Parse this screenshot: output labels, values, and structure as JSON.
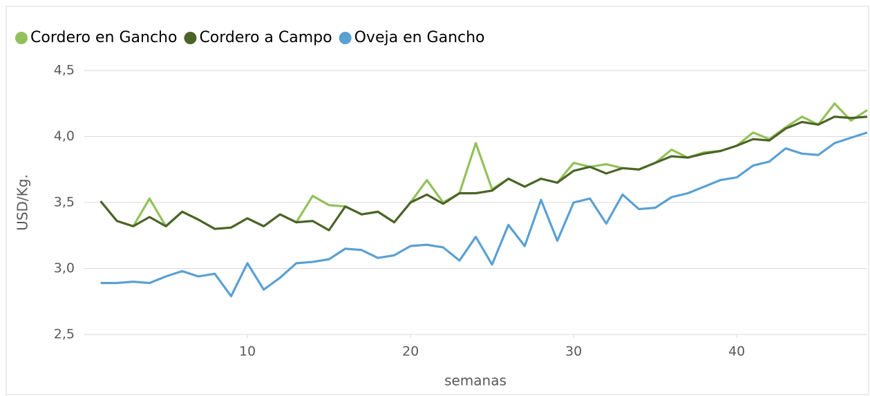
{
  "chart_data": {
    "type": "line",
    "legend": "top-left",
    "grid": true,
    "x_label": "semanas",
    "y_label": "USD/Kg.",
    "x": [
      1,
      2,
      3,
      4,
      5,
      6,
      7,
      8,
      9,
      10,
      11,
      12,
      13,
      14,
      15,
      16,
      17,
      18,
      19,
      20,
      21,
      22,
      23,
      24,
      25,
      26,
      27,
      28,
      29,
      30,
      31,
      32,
      33,
      34,
      35,
      36,
      37,
      38,
      39,
      40,
      41,
      42,
      43,
      44,
      45,
      46,
      47,
      48
    ],
    "xlim": [
      0,
      48
    ],
    "xticks": [
      10,
      20,
      30,
      40
    ],
    "ylim": [
      2.5,
      4.5
    ],
    "yticks": [
      {
        "value": 2.5,
        "label": "2,5"
      },
      {
        "value": 3.0,
        "label": "3,0"
      },
      {
        "value": 3.5,
        "label": "3,5"
      },
      {
        "value": 4.0,
        "label": "4,0"
      },
      {
        "value": 4.5,
        "label": "4,5"
      }
    ],
    "series": [
      {
        "name": "Cordero en Gancho",
        "color": "#92c15a",
        "values": [
          3.51,
          3.36,
          3.32,
          3.53,
          3.32,
          3.43,
          3.37,
          3.3,
          3.31,
          3.38,
          3.32,
          3.41,
          3.35,
          3.55,
          3.48,
          3.47,
          3.41,
          3.43,
          3.35,
          3.5,
          3.67,
          3.5,
          3.57,
          3.95,
          3.6,
          3.68,
          3.62,
          3.68,
          3.65,
          3.8,
          3.77,
          3.79,
          3.76,
          3.75,
          3.8,
          3.9,
          3.84,
          3.88,
          3.89,
          3.93,
          4.03,
          3.98,
          4.07,
          4.15,
          4.09,
          4.25,
          4.12,
          4.2
        ]
      },
      {
        "name": "Cordero a Campo",
        "color": "#4b6427",
        "values": [
          3.51,
          3.36,
          3.32,
          3.39,
          3.32,
          3.43,
          3.37,
          3.3,
          3.31,
          3.38,
          3.32,
          3.41,
          3.35,
          3.36,
          3.29,
          3.47,
          3.41,
          3.43,
          3.35,
          3.5,
          3.56,
          3.49,
          3.57,
          3.57,
          3.59,
          3.68,
          3.62,
          3.68,
          3.65,
          3.74,
          3.77,
          3.72,
          3.76,
          3.75,
          3.8,
          3.85,
          3.84,
          3.87,
          3.89,
          3.93,
          3.98,
          3.97,
          4.06,
          4.11,
          4.09,
          4.15,
          4.14,
          4.15
        ]
      },
      {
        "name": "Oveja en Gancho",
        "color": "#5aa0d3",
        "values": [
          2.89,
          2.89,
          2.9,
          2.89,
          2.94,
          2.98,
          2.94,
          2.96,
          2.79,
          3.04,
          2.84,
          2.93,
          3.04,
          3.05,
          3.07,
          3.15,
          3.14,
          3.08,
          3.1,
          3.17,
          3.18,
          3.16,
          3.06,
          3.24,
          3.03,
          3.33,
          3.17,
          3.52,
          3.21,
          3.5,
          3.53,
          3.34,
          3.56,
          3.45,
          3.46,
          3.54,
          3.57,
          3.62,
          3.67,
          3.69,
          3.78,
          3.81,
          3.91,
          3.87,
          3.86,
          3.95,
          3.99,
          4.03
        ]
      }
    ]
  }
}
